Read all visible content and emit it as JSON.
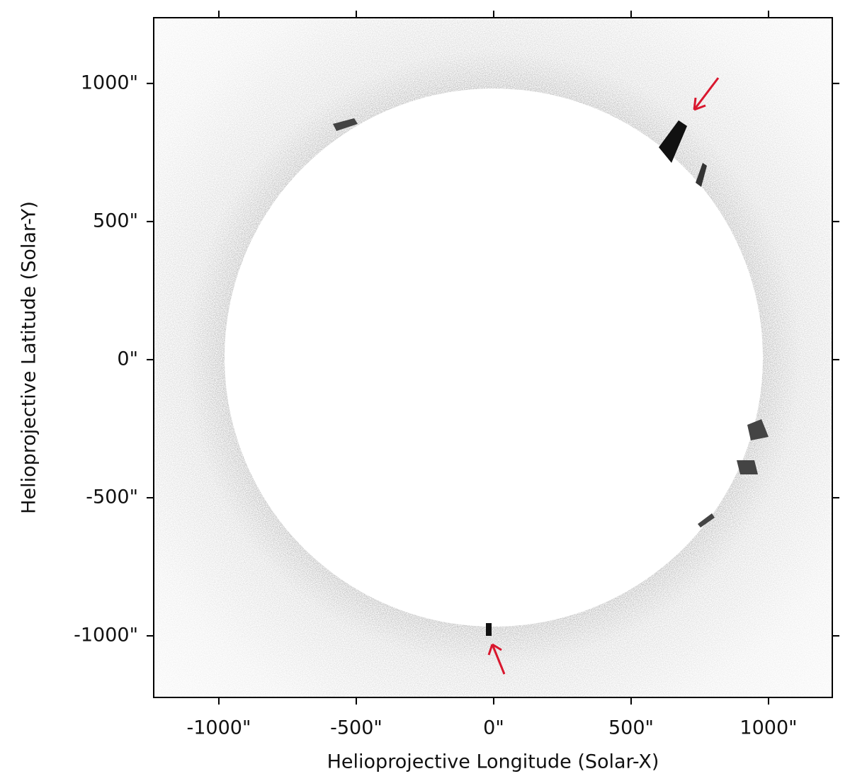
{
  "chart_data": {
    "type": "image",
    "xlabel": "Helioprojective Longitude (Solar-X)",
    "ylabel": "Helioprojective Latitude (Solar-Y)",
    "xlim": [
      -1237,
      1232
    ],
    "ylim": [
      -1223,
      1238
    ],
    "xticks": [
      {
        "value": -1000,
        "label": "-1000\""
      },
      {
        "value": -500,
        "label": "-500\""
      },
      {
        "value": 0,
        "label": "0\""
      },
      {
        "value": 500,
        "label": "500\""
      },
      {
        "value": 1000,
        "label": "1000\""
      }
    ],
    "yticks": [
      {
        "value": -1000,
        "label": "-1000\""
      },
      {
        "value": -500,
        "label": "-500\""
      },
      {
        "value": 0,
        "label": "0\""
      },
      {
        "value": 500,
        "label": "500\""
      },
      {
        "value": 1000,
        "label": "1000\""
      }
    ]
  }
}
